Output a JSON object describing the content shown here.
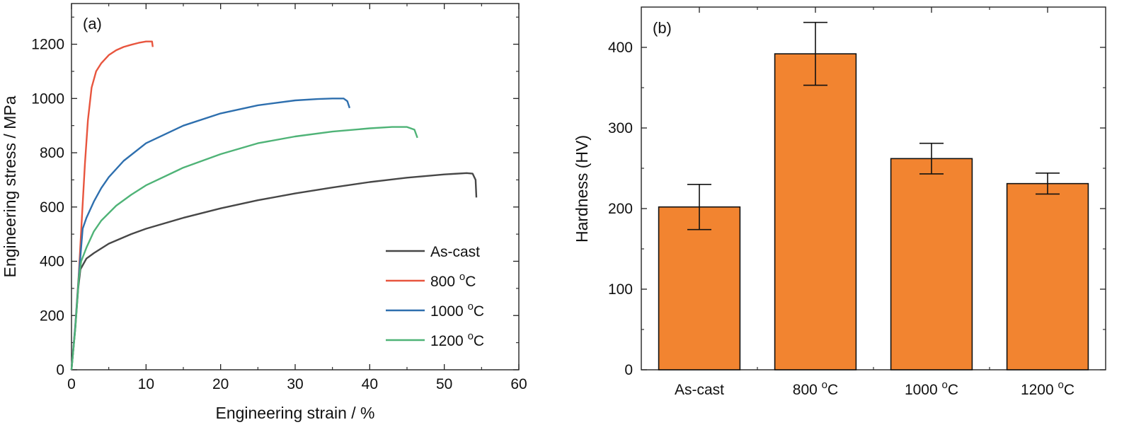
{
  "chart_data": [
    {
      "panel_label": "(a)",
      "type": "line",
      "xlabel": "Engineering strain / %",
      "ylabel": "Engineering stress / MPa",
      "xlim": [
        0,
        60
      ],
      "ylim": [
        0,
        1350
      ],
      "xticks": [
        "0",
        "10",
        "20",
        "30",
        "40",
        "50",
        "60"
      ],
      "yticks": [
        "0",
        "200",
        "400",
        "600",
        "800",
        "1000",
        "1200"
      ],
      "legend_position": "bottom-right",
      "grid": false,
      "series": [
        {
          "name": "As-cast",
          "color": "#474747",
          "points": [
            [
              0,
              0
            ],
            [
              0.5,
              150
            ],
            [
              0.9,
              300
            ],
            [
              1.2,
              370
            ],
            [
              2,
              410
            ],
            [
              3,
              430
            ],
            [
              5,
              465
            ],
            [
              8,
              500
            ],
            [
              10,
              520
            ],
            [
              15,
              560
            ],
            [
              20,
              595
            ],
            [
              25,
              625
            ],
            [
              30,
              650
            ],
            [
              35,
              672
            ],
            [
              40,
              692
            ],
            [
              45,
              708
            ],
            [
              50,
              720
            ],
            [
              53,
              725
            ],
            [
              53.8,
              723
            ],
            [
              54.2,
              700
            ],
            [
              54.3,
              635
            ]
          ]
        },
        {
          "name": "800 °C",
          "color": "#e8553e",
          "points": [
            [
              0,
              0
            ],
            [
              0.5,
              160
            ],
            [
              1,
              360
            ],
            [
              1.4,
              560
            ],
            [
              1.8,
              760
            ],
            [
              2.2,
              920
            ],
            [
              2.7,
              1040
            ],
            [
              3.3,
              1100
            ],
            [
              4,
              1130
            ],
            [
              5,
              1160
            ],
            [
              6,
              1178
            ],
            [
              7,
              1190
            ],
            [
              8,
              1198
            ],
            [
              9,
              1205
            ],
            [
              10,
              1210
            ],
            [
              10.8,
              1210
            ],
            [
              10.9,
              1190
            ]
          ]
        },
        {
          "name": "1000 °C",
          "color": "#2e6fae",
          "points": [
            [
              0,
              0
            ],
            [
              0.5,
              160
            ],
            [
              1,
              350
            ],
            [
              1.5,
              520
            ],
            [
              2,
              560
            ],
            [
              3,
              620
            ],
            [
              4,
              670
            ],
            [
              5,
              710
            ],
            [
              7,
              770
            ],
            [
              10,
              835
            ],
            [
              15,
              900
            ],
            [
              20,
              945
            ],
            [
              25,
              975
            ],
            [
              30,
              993
            ],
            [
              33,
              998
            ],
            [
              35,
              1000
            ],
            [
              36.5,
              1000
            ],
            [
              37,
              990
            ],
            [
              37.3,
              965
            ]
          ]
        },
        {
          "name": "1200 °C",
          "color": "#4fb377",
          "points": [
            [
              0,
              0
            ],
            [
              0.5,
              150
            ],
            [
              1,
              340
            ],
            [
              1.3,
              400
            ],
            [
              2,
              450
            ],
            [
              3,
              510
            ],
            [
              4,
              550
            ],
            [
              6,
              605
            ],
            [
              8,
              645
            ],
            [
              10,
              680
            ],
            [
              15,
              745
            ],
            [
              20,
              795
            ],
            [
              25,
              835
            ],
            [
              30,
              860
            ],
            [
              35,
              878
            ],
            [
              40,
              890
            ],
            [
              43,
              895
            ],
            [
              45,
              895
            ],
            [
              46,
              885
            ],
            [
              46.4,
              855
            ]
          ]
        }
      ]
    },
    {
      "panel_label": "(b)",
      "type": "bar",
      "ylabel": "Hardness (HV)",
      "ylim": [
        0,
        450
      ],
      "yticks": [
        "0",
        "100",
        "200",
        "300",
        "400"
      ],
      "categories": [
        "As-cast",
        "800 °C",
        "1000 °C",
        "1200 °C"
      ],
      "values": [
        202,
        392,
        262,
        231
      ],
      "errors": [
        28,
        39,
        19,
        13
      ],
      "bar_color": "#f28430",
      "grid": false
    }
  ]
}
